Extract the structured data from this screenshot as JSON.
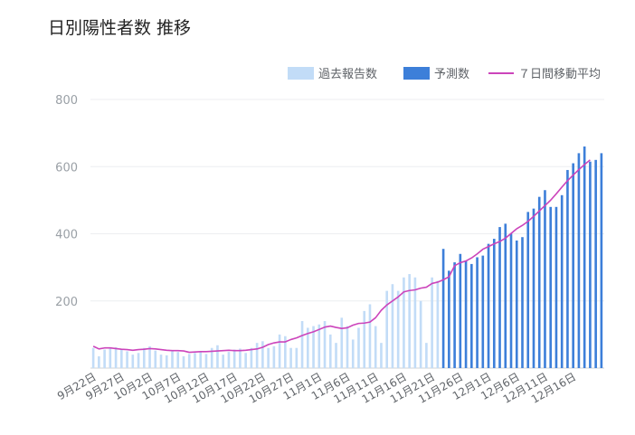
{
  "chart_data": {
    "type": "bar",
    "title": "日別陽性者数 推移",
    "legend": [
      {
        "key": "past",
        "label": "過去報告数",
        "color": "#c2dcf7"
      },
      {
        "key": "forecast",
        "label": "予測数",
        "color": "#3d7fd9"
      },
      {
        "key": "avg",
        "label": "７日間移動平均",
        "color": "#cc44bb"
      }
    ],
    "legend_position": "top-right",
    "ylim": [
      0,
      800
    ],
    "yticks": [
      0,
      200,
      400,
      600,
      800
    ],
    "grid": true,
    "x_start": "2020-09-22",
    "x_tick_labels": [
      "9月22日",
      "9月27日",
      "10月2日",
      "10月7日",
      "10月12日",
      "10月17日",
      "10月22日",
      "10月27日",
      "11月1日",
      "11月6日",
      "11月11日",
      "11月16日",
      "11月21日",
      "11月26日",
      "12月1日",
      "12月6日",
      "12月11日",
      "12月16日"
    ],
    "past": {
      "name": "過去報告数",
      "values": [
        60,
        35,
        55,
        60,
        62,
        58,
        50,
        40,
        45,
        60,
        65,
        52,
        40,
        38,
        50,
        48,
        35,
        42,
        45,
        50,
        42,
        60,
        68,
        40,
        48,
        55,
        58,
        45,
        60,
        75,
        80,
        60,
        65,
        100,
        95,
        60,
        60,
        140,
        120,
        125,
        130,
        140,
        100,
        75,
        150,
        125,
        85,
        120,
        170,
        190,
        125,
        75,
        230,
        250,
        230,
        270,
        280,
        270,
        200,
        75,
        270,
        260
      ]
    },
    "forecast": {
      "name": "予測数",
      "values": [
        355,
        290,
        315,
        340,
        320,
        310,
        330,
        335,
        370,
        385,
        420,
        430,
        400,
        380,
        390,
        465,
        475,
        510,
        530,
        480,
        480,
        515,
        590,
        610,
        640,
        660,
        615,
        620,
        640
      ]
    },
    "moving_avg": {
      "name": "７日間移動平均",
      "values": [
        65,
        57,
        60,
        60,
        58,
        56,
        55,
        53,
        55,
        56,
        58,
        57,
        55,
        53,
        52,
        52,
        51,
        47,
        48,
        49,
        49,
        50,
        51,
        52,
        53,
        52,
        52,
        53,
        55,
        57,
        62,
        70,
        75,
        78,
        78,
        85,
        90,
        97,
        103,
        108,
        115,
        122,
        125,
        121,
        118,
        120,
        128,
        133,
        134,
        137,
        150,
        172,
        188,
        200,
        212,
        227,
        231,
        233,
        238,
        241,
        252,
        256,
        263,
        272,
        305,
        314,
        319,
        328,
        340,
        354,
        362,
        370,
        377,
        387,
        401,
        415,
        425,
        437,
        452,
        468,
        484,
        500,
        519,
        539,
        558,
        575,
        591,
        606,
        620
      ]
    }
  }
}
